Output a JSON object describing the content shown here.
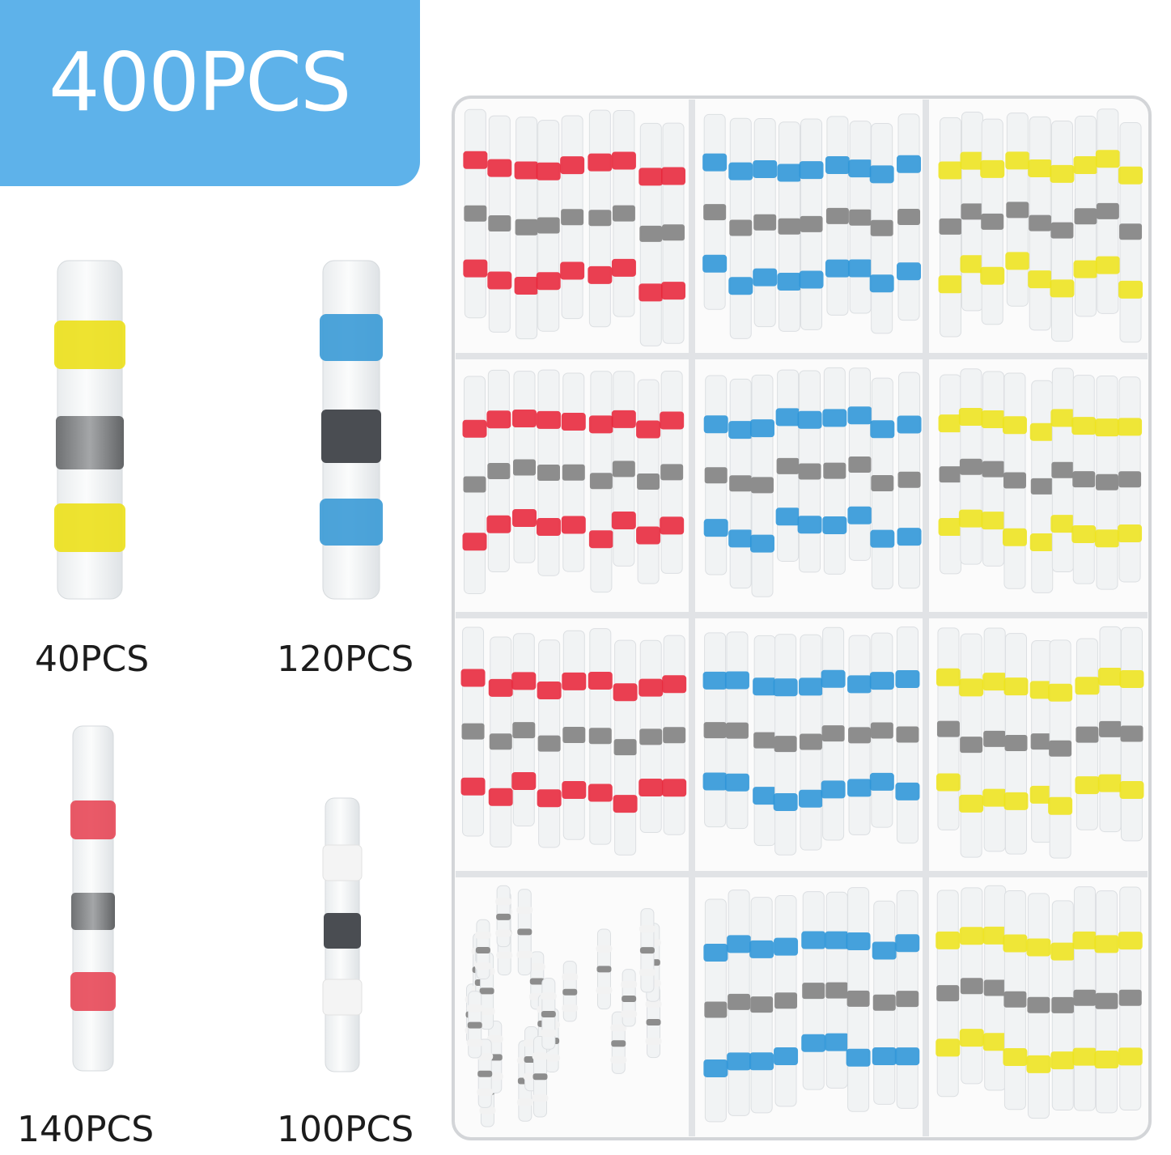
{
  "header": {
    "title": "400PCS",
    "color": "#5eb2ea"
  },
  "kits": [
    {
      "label": "40PCS",
      "band_color": "#ece01a"
    },
    {
      "label": "120PCS",
      "band_color": "#3a9ad6"
    },
    {
      "label": "140PCS",
      "band_color": "#e63d4d"
    },
    {
      "label": "100PCS",
      "band_color": "#f4f4f4"
    }
  ],
  "tray": {
    "columns": [
      [
        "red",
        "red",
        "red",
        "white"
      ],
      [
        "blue",
        "blue",
        "blue",
        "blue"
      ],
      [
        "yellow",
        "yellow",
        "yellow",
        "yellow"
      ]
    ],
    "colors": {
      "red": "#e8253a",
      "blue": "#2c95d8",
      "yellow": "#eee41d",
      "white": "#f2f2f2",
      "solder": "#8d8d8d"
    }
  }
}
